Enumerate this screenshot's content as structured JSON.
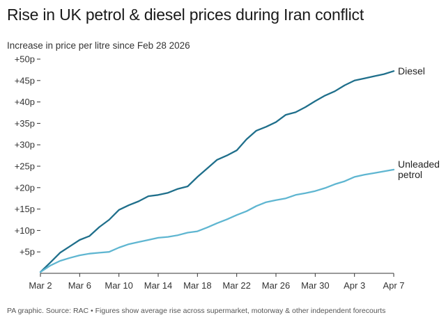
{
  "title": "Rise in UK petrol & diesel prices during Iran conflict",
  "subtitle": "Increase in price per litre since Feb 28 2026",
  "footnote": "PA graphic. Source: RAC • Figures show average rise across supermarket, motorway & other independent forecourts",
  "colors": {
    "diesel": "#1f6f8b",
    "petrol": "#5fb6d1",
    "axis": "#333333"
  },
  "chart_data": {
    "type": "line",
    "title": "Rise in UK petrol & diesel prices during Iran conflict",
    "subtitle": "Increase in price per litre since Feb 28 2026",
    "xlabel": "",
    "ylabel": "",
    "x": [
      "Mar 2",
      "Mar 3",
      "Mar 4",
      "Mar 5",
      "Mar 6",
      "Mar 7",
      "Mar 8",
      "Mar 9",
      "Mar 10",
      "Mar 11",
      "Mar 12",
      "Mar 13",
      "Mar 14",
      "Mar 15",
      "Mar 16",
      "Mar 17",
      "Mar 18",
      "Mar 19",
      "Mar 20",
      "Mar 21",
      "Mar 22",
      "Mar 23",
      "Mar 24",
      "Mar 25",
      "Mar 26",
      "Mar 27",
      "Mar 28",
      "Mar 29",
      "Mar 30",
      "Mar 31",
      "Apr 1",
      "Apr 2",
      "Apr 3",
      "Apr 4",
      "Apr 5",
      "Apr 6",
      "Apr 7"
    ],
    "x_ticks": [
      "Mar 2",
      "Mar 6",
      "Mar 10",
      "Mar 14",
      "Mar 18",
      "Mar 22",
      "Mar 26",
      "Mar 30",
      "Apr 3",
      "Apr 7"
    ],
    "y_ticks": [
      "+5p",
      "+10p",
      "+15p",
      "+20p",
      "+25p",
      "+30p",
      "+35p",
      "+40p",
      "+45p",
      "+50p"
    ],
    "y_tick_values": [
      5,
      10,
      15,
      20,
      25,
      30,
      35,
      40,
      45,
      50
    ],
    "ylim": [
      0,
      50
    ],
    "grid": false,
    "series": [
      {
        "name": "Diesel",
        "color": "#1f6f8b",
        "values": [
          0.3,
          2.5,
          4.8,
          6.3,
          7.8,
          8.7,
          10.8,
          12.5,
          14.8,
          15.9,
          16.8,
          18.0,
          18.3,
          18.8,
          19.7,
          20.3,
          22.5,
          24.5,
          26.5,
          27.5,
          28.7,
          31.3,
          33.3,
          34.2,
          35.3,
          37.0,
          37.6,
          38.8,
          40.2,
          41.5,
          42.5,
          43.9,
          45.0,
          45.5,
          46.0,
          46.5,
          47.2
        ]
      },
      {
        "name": "Unleaded petrol",
        "name_lines": [
          "Unleaded",
          "petrol"
        ],
        "color": "#5fb6d1",
        "values": [
          0.3,
          1.8,
          2.9,
          3.6,
          4.2,
          4.6,
          4.8,
          5.0,
          6.0,
          6.8,
          7.3,
          7.8,
          8.3,
          8.5,
          8.9,
          9.5,
          9.8,
          10.7,
          11.7,
          12.6,
          13.6,
          14.5,
          15.7,
          16.6,
          17.1,
          17.5,
          18.3,
          18.7,
          19.2,
          19.9,
          20.8,
          21.5,
          22.5,
          23.0,
          23.4,
          23.8,
          24.2
        ]
      }
    ]
  }
}
